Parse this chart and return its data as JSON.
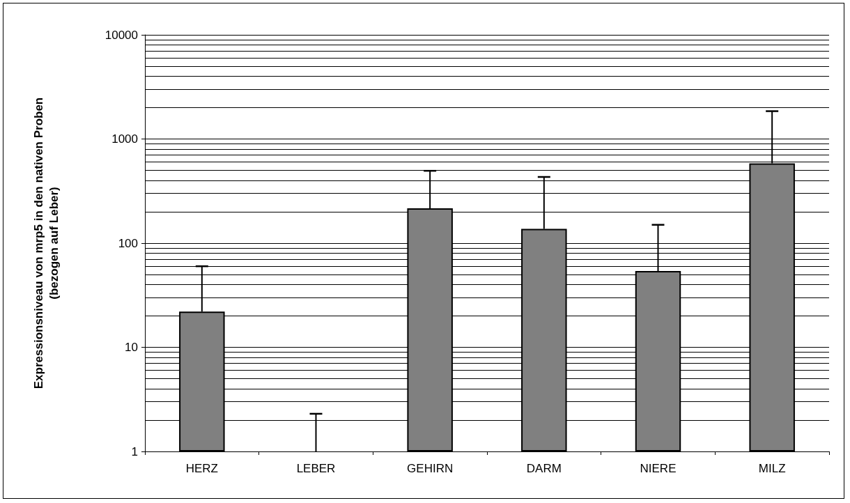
{
  "chart_data": {
    "type": "bar",
    "ylabel": "Expressionsniveau von mrp5 in den nativen Proben\n(bezogen auf Leber)",
    "categories": [
      "HERZ",
      "LEBER",
      "GEHIRN",
      "DARM",
      "NIERE",
      "MILZ"
    ],
    "values": [
      22,
      1,
      216,
      137,
      54,
      584
    ],
    "errors": [
      [
        22,
        60
      ],
      [
        1,
        2.3
      ],
      [
        216,
        495
      ],
      [
        137,
        432
      ],
      [
        54,
        150
      ],
      [
        584,
        1850
      ]
    ],
    "color": "#808080",
    "log": true,
    "ylim": [
      1,
      10000
    ],
    "yticks": [
      1,
      10,
      100,
      1000,
      10000
    ],
    "grid": "y"
  }
}
